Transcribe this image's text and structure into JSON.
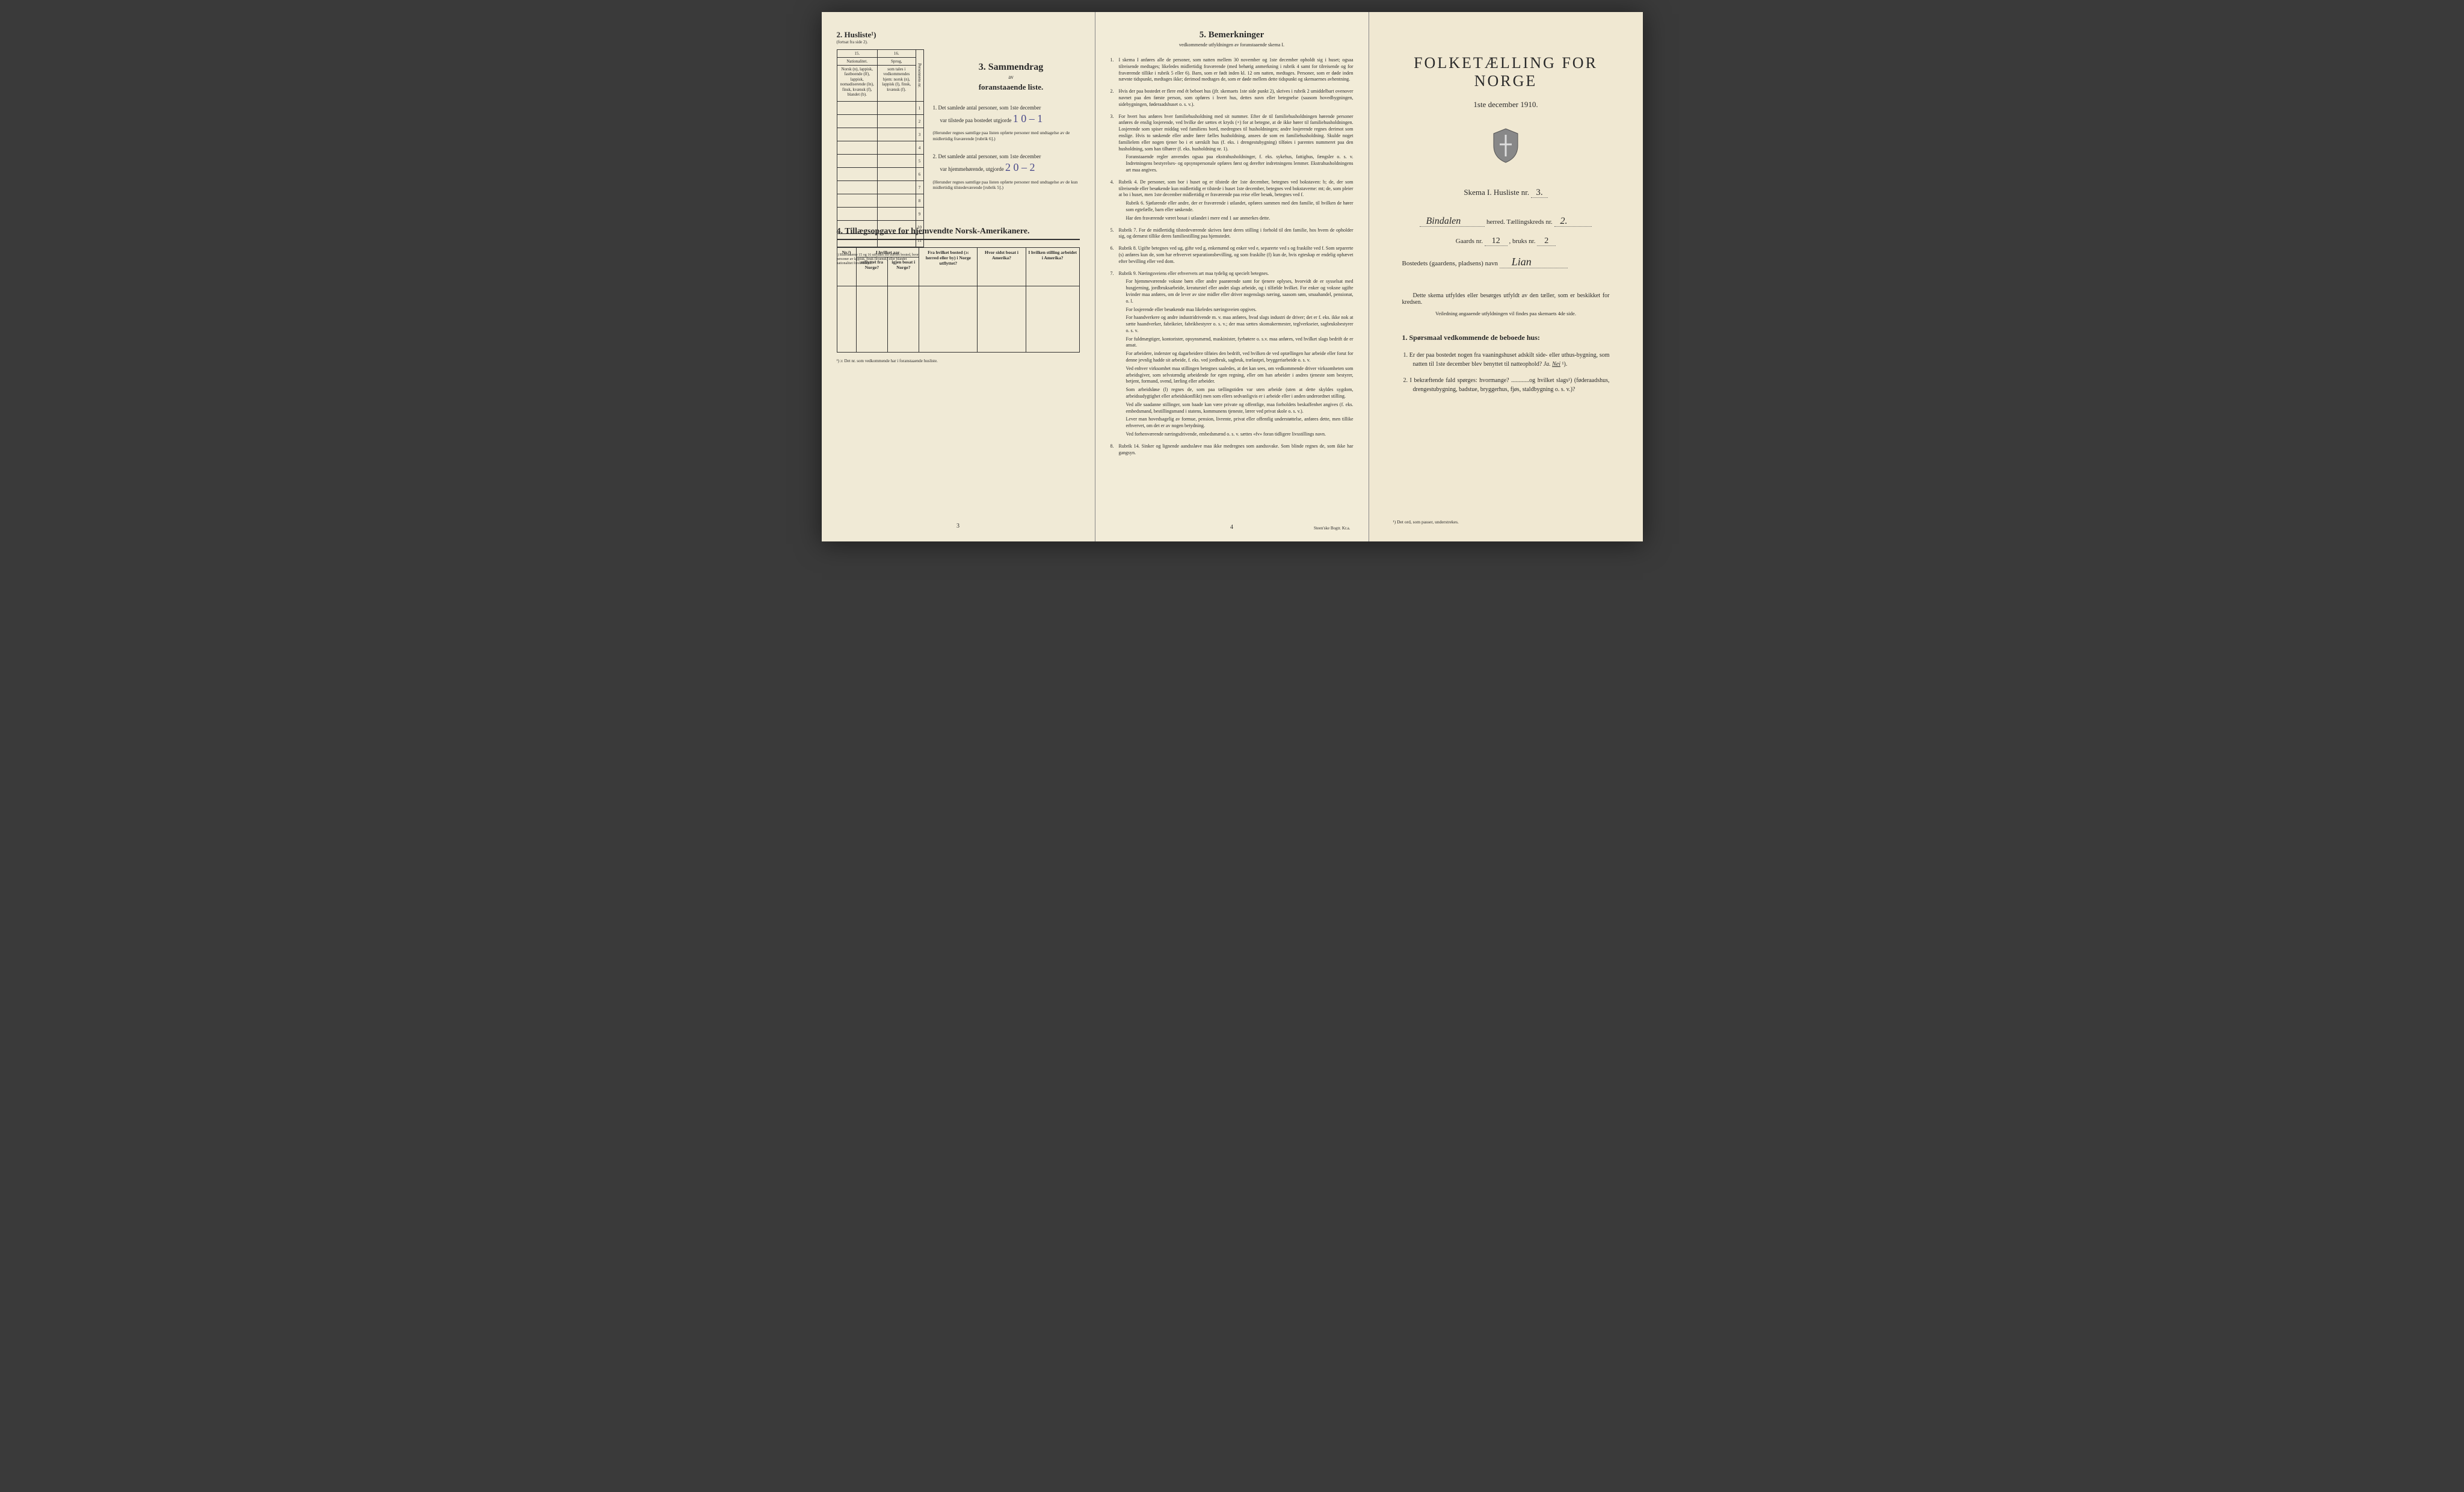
{
  "colors": {
    "paper": "#f0ead6",
    "paper_mid": "#f2ecd8",
    "paper_right": "#f0e8d2",
    "ink": "#2a2a2a",
    "handwriting": "#4a4a8a",
    "background": "#3a3a3a"
  },
  "left_page": {
    "husliste_num": "2.",
    "husliste_label": "Husliste¹)",
    "fortsat": "(fortsat fra side 2).",
    "col15": "15.",
    "col16": "16.",
    "col15_header": "Nationalitet.",
    "col16_header": "Sprog,",
    "col15_text": "Norsk (n), lappisk, fastboende (lf), lappisk, nomadiserende (ln), finsk, kvænsk (f), blandet (b).",
    "col16_text": "som tales i vedkommendes hjem: norsk (n), lappisk (l), finsk, kvænsk (f).",
    "person_nr": "Personnens nr.",
    "row_nums": [
      "1",
      "2",
      "3",
      "4",
      "5",
      "6",
      "7",
      "8",
      "9",
      "10",
      "11"
    ],
    "footnote1": "¹) Rubrikkerne 15 og 16 utfyldes for ethvert bosted, hvor personer av lappisk, finsk (kvænsk) eller blandet nationalitet forekommer.",
    "section3_title": "3.  Sammendrag",
    "section3_av": "av",
    "section3_sub": "foranstaaende liste.",
    "item1_num": "1.",
    "item1_text_a": "Det samlede antal personer, som 1ste december",
    "item1_text_b": "var tilstede paa bostedet utgjorde",
    "item1_hw": "1 0 – 1",
    "item1_paren": "(Herunder regnes samtlige paa listen opførte personer med undtagelse av de midlertidig fraværende [rubrik 6].)",
    "item2_num": "2.",
    "item2_text_a": "Det samlede antal personer, som 1ste december",
    "item2_text_b": "var hjemmehørende, utgjorde",
    "item2_hw": "2 0 – 2",
    "item2_paren": "(Herunder regnes samtlige paa listen opførte personer med undtagelse av de kun midlertidig tilstedeværende [rubrik 5].)",
    "section4_title": "4.  Tillægsopgave for hjemvendte Norsk-Amerikanere.",
    "t4_col1": "Nr.²)",
    "t4_col2a": "I hvilket aar",
    "t4_col2b": "utflyttet fra Norge?",
    "t4_col2c": "igjen bosat i Norge?",
    "t4_col3": "Fra hvilket bosted (ɔ: herred eller by) i Norge utflyttet?",
    "t4_col4": "Hvor sidst bosat i Amerika?",
    "t4_col5": "I hvilken stilling arbeidet i Amerika?",
    "footnote2": "²) ɔ: Det nr. som vedkommende har i foranstaaende husliste.",
    "page_num": "3"
  },
  "middle_page": {
    "title": "5.   Bemerkninger",
    "subtitle": "vedkommende utfyldningen av foranstaaende skema I.",
    "items": [
      {
        "n": "1.",
        "t": "I skema I anføres alle de personer, som natten mellem 30 november og 1ste december opholdt sig i huset; ogsaa tilreisende medtages; likeledes midlertidig fraværende (med behørig anmerkning i rubrik 4 samt for tilreisende og for fraværende tillike i rubrik 5 eller 6). Barn, som er født inden kl. 12 om natten, medtages. Personer, som er døde inden nævnte tidspunkt, medtages ikke; derimod medtages de, som er døde mellem dette tidspunkt og skemaernes avhentning."
      },
      {
        "n": "2.",
        "t": "Hvis der paa bostedet er flere end ét beboet hus (jfr. skemaets 1ste side punkt 2), skrives i rubrik 2 umiddelbart ovenover navnet paa den første person, som opføres i hvert hus, dettes navn eller betegnelse (saasom hovedbygningen, sidebygningen, føderaadshuset o. s. v.)."
      },
      {
        "n": "3.",
        "t": "For hvert hus anføres hver familiehusholdning med sit nummer. Efter de til familiehusholdningen hørende personer anføres de enslig losjerende, ved hvilke der sættes et kryds (×) for at betegne, at de ikke hører til familiehusholdningen. Losjerende som spiser middag ved familiens bord, medregnes til husholdningen; andre losjerende regnes derimot som enslige. Hvis to søskende eller andre fører fælles husholdning, ansees de som en familiehusholdning. Skulde noget familielem eller nogen tjener bo i et særskilt hus (f. eks. i drengestubygning) tilføies i parentes nummeret paa den husholdning, som han tilhører (f. eks. husholdning nr. 1).",
        "sub": "Foranstaaende regler anvendes ogsaa paa ekstrahusholdninger, f. eks. sykehus, fattighus, fængsler o. s. v. Indretningens bestyrelses- og opsynspersonale opføres først og derefter indretningens lemmer. Ekstrahusholdningens art maa angives."
      },
      {
        "n": "4.",
        "t": "Rubrik 4. De personer, som bor i huset og er tilstede der 1ste december, betegnes ved bokstaven: b; de, der som tilreisende eller besøkende kun midlertidig er tilstede i huset 1ste december, betegnes ved bokstaverne: mt; de, som pleier at bo i huset, men 1ste december midlertidig er fraværende paa reise eller besøk, betegnes ved f.",
        "sub": "Rubrik 6. Sjøfarende eller andre, der er fraværende i utlandet, opføres sammen med den familie, til hvilken de hører som egtefælle, barn eller søskende.\nHar den fraværende været bosat i utlandet i mere end 1 aar anmerkes dette."
      },
      {
        "n": "5.",
        "t": "Rubrik 7. For de midlertidig tilstedeværende skrives først deres stilling i forhold til den familie, hos hvem de opholder sig, og dernæst tillike deres familiestilling paa hjemstedet."
      },
      {
        "n": "6.",
        "t": "Rubrik 8. Ugifte betegnes ved ug, gifte ved g, enkemænd og enker ved e, separerte ved s og fraskilte ved f. Som separerte (s) anføres kun de, som har erhvervet separationsbevilling, og som fraskilte (f) kun de, hvis egteskap er endelig ophævet efter bevilling eller ved dom."
      },
      {
        "n": "7.",
        "t": "Rubrik 9. Næringsveiens eller erhvervets art maa tydelig og specielt betegnes.",
        "sub": "For hjemmeværende voksne børn eller andre paarørende samt for tjenere oplyses, hvorvidt de er sysselsat med husgjerning, jordbruksarbeide, kreaturstel eller andet slags arbeide, og i tilfælde hvilket. For enker og voksne ugifte kvinder maa anføres, om de lever av sine midler eller driver nogenslags næring, saasom søm, smaahandel, pensionat, o. l.\nFor losjerende eller besøkende maa likeledes næringsveien opgives.\nFor haandverkere og andre industridrivende m. v. maa anføres, hvad slags industri de driver; det er f. eks. ikke nok at sætte haandverker, fabrikeier, fabrikbestyrer o. s. v.; der maa sættes skomakermester, teglverkseier, sagbruksbestyrer o. s. v.\nFor fuldmægtiger, kontorister, opsynsmænd, maskinister, fyrbøtere o. s.v. maa anføres, ved hvilket slags bedrift de er ansat.\nFor arbeidere, inderster og dagarbeidere tilføies den bedrift, ved hvilken de ved optællingen har arbeide eller forut for denne jevnlig hadde sit arbeide, f. eks. ved jordbruk, sagbruk, trælastpri, bryggeriarbeide o. s. v.\nVed enhver virksomhet maa stillingen betegnes saaledes, at det kan sees, om vedkommende driver virksomheten som arbeidsgiver, som selvstændig arbeidende for egen regning, eller om han arbeider i andres tjeneste som bestyrer, betjent, formand, svend, lærling eller arbeider.\nSom arbeidsløse (l) regnes de, som paa tællingstiden var uten arbeide (uten at dette skyldes sygdom, arbeidsudygtighet eller arbeidskonflikt) men som ellers sedvanligvis er i arbeide eller i anden underordnet stilling.\nVed alle saadanne stillinger, som baade kan være private og offentlige, maa forholdets beskaffenhet angives (f. eks. embedsmand, bestillingsmand i statens, kommunens tjeneste, lærer ved privat skole o. s. v.).\nLever man hovedsagelig av formue, pension, livrente, privat eller offentlig understøttelse, anføres dette, men tillike erhvervet, om det er av nogen betydning.\nVed forhenværende næringsdrivende, embedsmænd o. s. v. sættes «fv» foran tidligere livsstillings navn."
      },
      {
        "n": "8.",
        "t": "Rubrik 14. Sinker og lignende aandssløve maa ikke medregnes som aandssvake. Som blinde regnes de, som ikke har gangsyn."
      }
    ],
    "page_num": "4",
    "printer": "Steen'ske Bogtr.  Kr.a."
  },
  "right_page": {
    "title": "FOLKETÆLLING FOR NORGE",
    "date": "1ste december 1910.",
    "skema_label": "Skema I.   Husliste nr.",
    "skema_hw": "3.",
    "herred_hw": "Bindalen",
    "herred_label": "herred.  Tællingskreds nr.",
    "kreds_hw": "2.",
    "gaards_label": "Gaards nr.",
    "gaards_hw": "12",
    "bruks_label": ", bruks nr.",
    "bruks_hw": "2",
    "bosted_label": "Bostedets (gaardens, pladsens) navn",
    "bosted_hw": "Lian",
    "instruct": "Dette skema utfyldes eller besørges utfyldt av den tæller, som er beskikket for kredsen.",
    "instruct_sub": "Veiledning angaaende utfyldningen vil findes paa skemaets 4de side.",
    "q_header": "1. Spørsmaal vedkommende de beboede hus:",
    "q1": "1. Er der paa bostedet nogen fra vaaningshuset adskilt side- eller uthus-bygning, som natten til 1ste december blev benyttet til natteophold?",
    "q1_ja": "Ja.",
    "q1_nei": "Nei",
    "q1_sup": " ¹).",
    "q2": "2. I bekræftende fald spørges: hvormange? ............og hvilket slags¹) (føderaadshus, drengestubygning, badstue, bryggerhus, fjøs, staldbygning o. s. v.)?",
    "footnote": "¹) Det ord, som passer, understrekes."
  }
}
